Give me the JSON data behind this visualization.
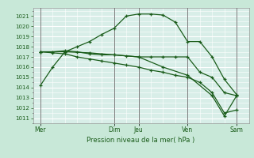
{
  "title": "",
  "xlabel": "Pression niveau de la mer( hPa )",
  "ylabel": "",
  "bg_color": "#c8e8d8",
  "plot_bg_color": "#d8eee8",
  "grid_color": "#ffffff",
  "vline_color": "#666666",
  "line_color": "#1a5c1a",
  "ylim": [
    1010.5,
    1021.8
  ],
  "yticks": [
    1011,
    1012,
    1013,
    1014,
    1015,
    1016,
    1017,
    1018,
    1019,
    1020,
    1021
  ],
  "day_labels": [
    "Mer",
    "Dim",
    "Jeu",
    "Ven",
    "Sam"
  ],
  "day_positions": [
    0,
    3.0,
    4.0,
    6.0,
    8.0
  ],
  "xlim": [
    -0.3,
    8.5
  ],
  "line1_x": [
    0,
    0.5,
    1,
    1.5,
    2,
    2.5,
    3,
    3.5,
    4,
    4.5,
    5,
    5.5,
    6,
    6.5,
    7,
    7.5,
    8
  ],
  "line1_y": [
    1014.2,
    1016.0,
    1017.5,
    1018.0,
    1018.5,
    1019.2,
    1019.8,
    1021.0,
    1021.2,
    1021.2,
    1021.1,
    1020.4,
    1018.5,
    1018.5,
    1017.0,
    1014.8,
    1013.3
  ],
  "line2_x": [
    0,
    0.5,
    1,
    1.5,
    2,
    2.5,
    3,
    3.5,
    4,
    4.5,
    5,
    5.5,
    6,
    6.5,
    7,
    7.5,
    8
  ],
  "line2_y": [
    1017.5,
    1017.5,
    1017.6,
    1017.5,
    1017.3,
    1017.2,
    1017.2,
    1017.1,
    1017.0,
    1017.0,
    1017.0,
    1017.0,
    1017.0,
    1015.5,
    1015.0,
    1013.5,
    1013.2
  ],
  "line3_x": [
    0,
    0.5,
    1,
    1.5,
    2,
    2.5,
    3,
    3.5,
    4,
    4.5,
    5,
    5.5,
    6,
    6.5,
    7,
    7.5,
    8
  ],
  "line3_y": [
    1017.5,
    1017.4,
    1017.3,
    1017.0,
    1016.8,
    1016.6,
    1016.4,
    1016.2,
    1016.0,
    1015.7,
    1015.5,
    1015.2,
    1015.0,
    1014.5,
    1013.5,
    1011.5,
    1011.8
  ],
  "line4_x": [
    0,
    1,
    2,
    3,
    4,
    5,
    6,
    7,
    7.5,
    8
  ],
  "line4_y": [
    1017.5,
    1017.5,
    1017.4,
    1017.2,
    1017.0,
    1016.0,
    1015.2,
    1013.2,
    1011.2,
    1013.2
  ]
}
